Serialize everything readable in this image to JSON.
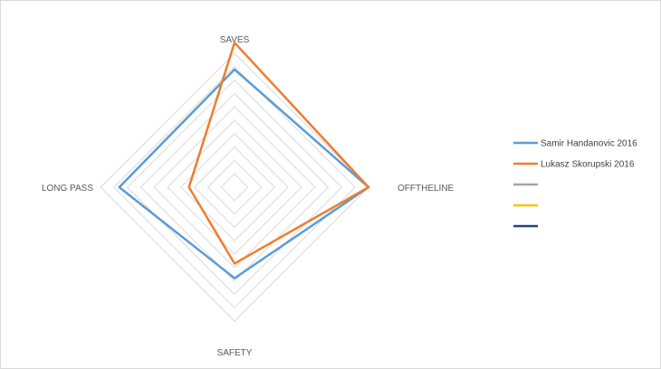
{
  "chart_data": {
    "type": "radar",
    "axes": [
      "SAVES",
      "OFFTHELINE",
      "SAFETY",
      "LONG PASS"
    ],
    "rmax": 10,
    "rings": 10,
    "series": [
      {
        "name": "Samir Handanovic 2016",
        "color": "#5b9bd5",
        "values": [
          8.8,
          10.0,
          6.8,
          8.6
        ]
      },
      {
        "name": "Lukasz Skorupski 2016",
        "color": "#ed7d31",
        "values": [
          10.8,
          10.0,
          5.7,
          3.4
        ]
      },
      {
        "name": "",
        "color": "#a5a5a5",
        "values": []
      },
      {
        "name": "",
        "color": "#ffc000",
        "values": []
      },
      {
        "name": "",
        "color": "#264478",
        "values": []
      }
    ],
    "legend_position": "right",
    "grid": true
  }
}
